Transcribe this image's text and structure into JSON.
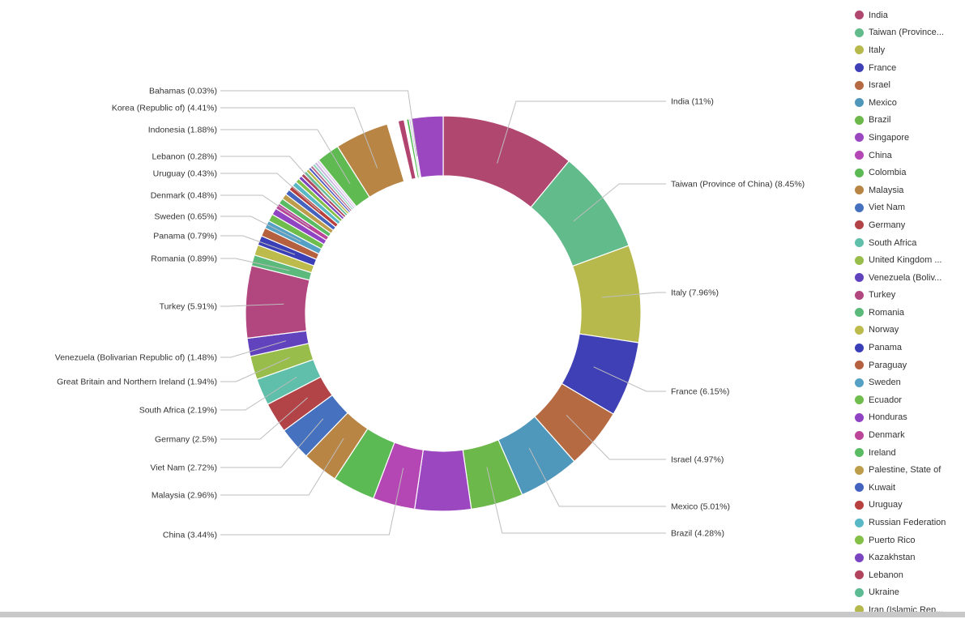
{
  "chart_data": {
    "type": "pie",
    "donut": true,
    "start": "top",
    "direction": "clockwise",
    "slices": [
      {
        "name": "India",
        "value": 11,
        "label": "India (11%)",
        "color": "#b0476f"
      },
      {
        "name": "Taiwan (Province of China)",
        "value": 8.45,
        "label": "Taiwan (Province of China) (8.45%)",
        "color": "#62bb8a"
      },
      {
        "name": "Italy",
        "value": 7.96,
        "label": "Italy (7.96%)",
        "color": "#b8b94d"
      },
      {
        "name": "France",
        "value": 6.15,
        "label": "France (6.15%)",
        "color": "#3f40b5"
      },
      {
        "name": "Israel",
        "value": 4.97,
        "label": "Israel (4.97%)",
        "color": "#b66a42"
      },
      {
        "name": "Mexico",
        "value": 5.01,
        "label": "Mexico (5.01%)",
        "color": "#4f97bb"
      },
      {
        "name": "Brazil",
        "value": 4.28,
        "label": "Brazil (4.28%)",
        "color": "#6cb84b"
      },
      {
        "name": "Singapore",
        "value": 4.6,
        "label": "",
        "color": "#9b47c0"
      },
      {
        "name": "China",
        "value": 3.44,
        "label": "China (3.44%)",
        "color": "#b447b3"
      },
      {
        "name": "Colombia",
        "value": 3.5,
        "label": "",
        "color": "#5cba55"
      },
      {
        "name": "Malaysia",
        "value": 2.96,
        "label": "Malaysia (2.96%)",
        "color": "#b88545"
      },
      {
        "name": "Viet Nam",
        "value": 2.72,
        "label": "Viet Nam (2.72%)",
        "color": "#4671bf"
      },
      {
        "name": "Germany",
        "value": 2.5,
        "label": "Germany (2.5%)",
        "color": "#b24448"
      },
      {
        "name": "South Africa",
        "value": 2.19,
        "label": "South Africa (2.19%)",
        "color": "#5fbfaa"
      },
      {
        "name": "Great Britain and Northern Ireland",
        "value": 1.94,
        "label": "Great Britain and Northern Ireland (1.94%)",
        "color": "#98bd4a"
      },
      {
        "name": "Venezuela (Bolivarian Republic of)",
        "value": 1.48,
        "label": "Venezuela (Bolivarian Republic of) (1.48%)",
        "color": "#6143bd"
      },
      {
        "name": "Turkey",
        "value": 5.91,
        "label": "Turkey (5.91%)",
        "color": "#b2467f"
      },
      {
        "name": "Romania",
        "value": 0.89,
        "label": "Romania (0.89%)",
        "color": "#5bba7b"
      },
      {
        "name": "Norway",
        "value": 0.85,
        "label": "",
        "color": "#bcbb4c"
      },
      {
        "name": "Panama",
        "value": 0.79,
        "label": "Panama (0.79%)",
        "color": "#3a3fb8"
      },
      {
        "name": "Paraguay",
        "value": 0.7,
        "label": "",
        "color": "#b5603f"
      },
      {
        "name": "Sweden",
        "value": 0.65,
        "label": "Sweden (0.65%)",
        "color": "#55a0c5"
      },
      {
        "name": "Ecuador",
        "value": 0.6,
        "label": "",
        "color": "#6fbd4d"
      },
      {
        "name": "Honduras",
        "value": 0.55,
        "label": "",
        "color": "#9044c4"
      },
      {
        "name": "Denmark",
        "value": 0.48,
        "label": "Denmark (0.48%)",
        "color": "#bb4598"
      },
      {
        "name": "Ireland",
        "value": 0.47,
        "label": "",
        "color": "#59bb62"
      },
      {
        "name": "Palestine, State of",
        "value": 0.46,
        "label": "",
        "color": "#bd9d4b"
      },
      {
        "name": "Kuwait",
        "value": 0.45,
        "label": "",
        "color": "#4363bf"
      },
      {
        "name": "Uruguay",
        "value": 0.43,
        "label": "Uruguay (0.43%)",
        "color": "#b8403e"
      },
      {
        "name": "Russian Federation",
        "value": 0.4,
        "label": "",
        "color": "#58b8c6"
      },
      {
        "name": "Puerto Rico",
        "value": 0.35,
        "label": "",
        "color": "#84bf48"
      },
      {
        "name": "Kazakhstan",
        "value": 0.3,
        "label": "",
        "color": "#7b45c1"
      },
      {
        "name": "Lebanon",
        "value": 0.28,
        "label": "Lebanon (0.28%)",
        "color": "#b1445d"
      },
      {
        "name": "Ukraine",
        "value": 0.27,
        "label": "",
        "color": "#5dbb94"
      },
      {
        "name": "Iran (Islamic Republic of)",
        "value": 0.25,
        "label": "",
        "color": "#b5b84b"
      },
      {
        "name": "",
        "value": 0.22,
        "label": "",
        "color": "#4b55bf"
      },
      {
        "name": "",
        "value": 0.22,
        "label": "",
        "color": "#b86a8c"
      },
      {
        "name": "",
        "value": 0.22,
        "label": "",
        "color": "#8fd0c0"
      },
      {
        "name": "",
        "value": 0.22,
        "label": "",
        "color": "#c9b4e0"
      },
      {
        "name": "",
        "value": 0.22,
        "label": "",
        "color": "#e0d0ee"
      },
      {
        "name": "Indonesia",
        "value": 1.88,
        "label": "Indonesia (1.88%)",
        "color": "#5fba52"
      },
      {
        "name": "Korea (Republic of)",
        "value": 4.41,
        "label": "Korea (Republic of) (4.41%)",
        "color": "#b88545"
      },
      {
        "name": "",
        "value": 0.9,
        "label": "",
        "color": "#ffffff"
      },
      {
        "name": "",
        "value": 0.5,
        "label": "",
        "color": "#b2456f"
      },
      {
        "name": "",
        "value": 0.2,
        "label": "",
        "color": "#ffffff"
      },
      {
        "name": "",
        "value": 0.2,
        "label": "",
        "color": "#4cba4c"
      },
      {
        "name": "",
        "value": 0.15,
        "label": "",
        "color": "#c9b7e6"
      },
      {
        "name": "Bahamas",
        "value": 0.03,
        "label": "Bahamas (0.03%)",
        "color": "#9a8fd0"
      },
      {
        "name": "",
        "value": 2.6,
        "label": "",
        "color": "#9b47c0"
      }
    ],
    "legend": {
      "placement": "right",
      "entries": [
        {
          "label": "India",
          "color": "#b0476f"
        },
        {
          "label": "Taiwan (Province...",
          "color": "#62bb8a"
        },
        {
          "label": "Italy",
          "color": "#b8b94d"
        },
        {
          "label": "France",
          "color": "#3f40b5"
        },
        {
          "label": "Israel",
          "color": "#b66a42"
        },
        {
          "label": "Mexico",
          "color": "#4f97bb"
        },
        {
          "label": "Brazil",
          "color": "#6cb84b"
        },
        {
          "label": "Singapore",
          "color": "#9b47c0"
        },
        {
          "label": "China",
          "color": "#b447b3"
        },
        {
          "label": "Colombia",
          "color": "#5cba55"
        },
        {
          "label": "Malaysia",
          "color": "#b88545"
        },
        {
          "label": "Viet Nam",
          "color": "#4671bf"
        },
        {
          "label": "Germany",
          "color": "#b24448"
        },
        {
          "label": "South Africa",
          "color": "#5fbfaa"
        },
        {
          "label": "United Kingdom ...",
          "color": "#98bd4a"
        },
        {
          "label": "Venezuela (Boliv...",
          "color": "#6143bd"
        },
        {
          "label": "Turkey",
          "color": "#b2467f"
        },
        {
          "label": "Romania",
          "color": "#5bba7b"
        },
        {
          "label": "Norway",
          "color": "#bcbb4c"
        },
        {
          "label": "Panama",
          "color": "#3a3fb8"
        },
        {
          "label": "Paraguay",
          "color": "#b5603f"
        },
        {
          "label": "Sweden",
          "color": "#55a0c5"
        },
        {
          "label": "Ecuador",
          "color": "#6fbd4d"
        },
        {
          "label": "Honduras",
          "color": "#9044c4"
        },
        {
          "label": "Denmark",
          "color": "#bb4598"
        },
        {
          "label": "Ireland",
          "color": "#59bb62"
        },
        {
          "label": "Palestine, State of",
          "color": "#bd9d4b"
        },
        {
          "label": "Kuwait",
          "color": "#4363bf"
        },
        {
          "label": "Uruguay",
          "color": "#b8403e"
        },
        {
          "label": "Russian Federation",
          "color": "#58b8c6"
        },
        {
          "label": "Puerto Rico",
          "color": "#84bf48"
        },
        {
          "label": "Kazakhstan",
          "color": "#7b45c1"
        },
        {
          "label": "Lebanon",
          "color": "#b1445d"
        },
        {
          "label": "Ukraine",
          "color": "#5dbb94"
        },
        {
          "label": "Iran (Islamic Rep...",
          "color": "#b5b84b"
        }
      ]
    }
  }
}
